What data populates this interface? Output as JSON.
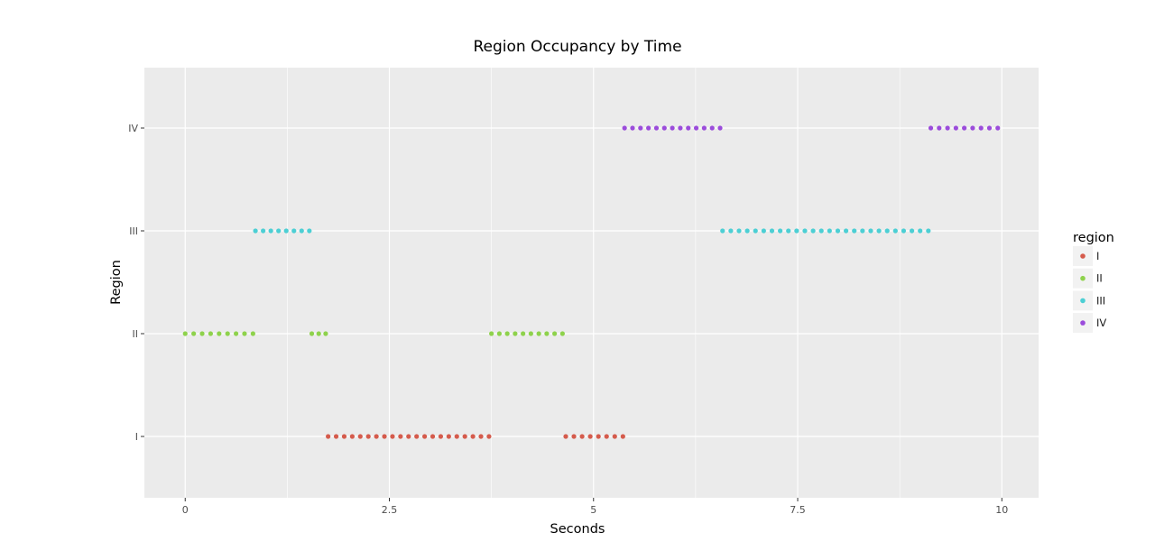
{
  "chart_data": {
    "type": "scatter",
    "title": "Region Occupancy by Time",
    "xlabel": "Seconds",
    "ylabel": "Region",
    "xlim": [
      -0.5,
      10.45
    ],
    "x_ticks": [
      0,
      2.5,
      5,
      7.5,
      10
    ],
    "x_tick_labels": [
      "0",
      "2.5",
      "5",
      "7.5",
      "10"
    ],
    "categories": [
      "I",
      "II",
      "III",
      "IV"
    ],
    "grid": true,
    "legend_title": "region",
    "legend_position": "right",
    "point_step": 0.1,
    "series": [
      {
        "name": "I",
        "color": "#d55b4c",
        "segments": [
          [
            1.75,
            3.72
          ],
          [
            4.66,
            5.36
          ]
        ]
      },
      {
        "name": "II",
        "color": "#8ed24c",
        "segments": [
          [
            0.0,
            0.83
          ],
          [
            1.55,
            1.72
          ],
          [
            3.75,
            4.62
          ]
        ]
      },
      {
        "name": "III",
        "color": "#4ccfd4",
        "segments": [
          [
            0.86,
            1.52
          ],
          [
            6.58,
            9.1
          ]
        ]
      },
      {
        "name": "IV",
        "color": "#9b4cdb",
        "segments": [
          [
            5.38,
            6.55
          ],
          [
            9.13,
            9.95
          ]
        ]
      }
    ]
  }
}
